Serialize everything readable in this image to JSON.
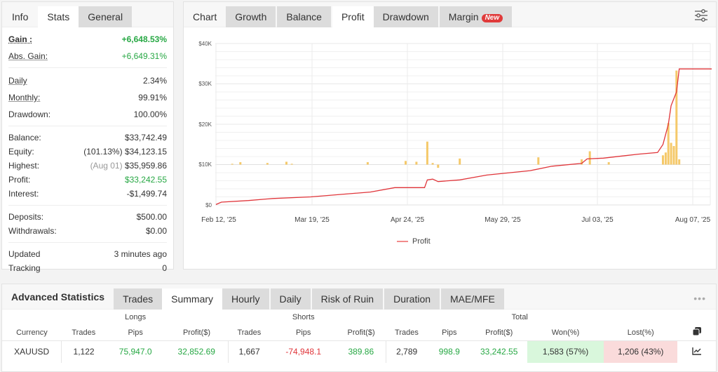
{
  "stats_panel": {
    "tabs": [
      {
        "label": "Info",
        "active": false
      },
      {
        "label": "Stats",
        "active": true
      },
      {
        "label": "General",
        "active": false
      }
    ],
    "gain_label": "Gain :",
    "gain_value": "+6,648.53%",
    "abs_gain_label": "Abs. Gain:",
    "abs_gain_value": "+6,649.31%",
    "daily_label": "Daily",
    "daily_value": "2.34%",
    "monthly_label": "Monthly:",
    "monthly_value": "99.91%",
    "drawdown_label": "Drawdown:",
    "drawdown_value": "100.00%",
    "balance_label": "Balance:",
    "balance_value": "$33,742.49",
    "equity_label": "Equity:",
    "equity_pct": "(101.13%)",
    "equity_value": "$34,123.15",
    "highest_label": "Highest:",
    "highest_date": "(Aug 01)",
    "highest_value": "$35,959.86",
    "profit_label": "Profit:",
    "profit_value": "$33,242.55",
    "interest_label": "Interest:",
    "interest_value": "-$1,499.74",
    "deposits_label": "Deposits:",
    "deposits_value": "$500.00",
    "withdrawals_label": "Withdrawals:",
    "withdrawals_value": "$0.00",
    "updated_label": "Updated",
    "updated_value": "3 minutes ago",
    "tracking_label": "Tracking",
    "tracking_value": "0"
  },
  "chart_panel": {
    "tabs": [
      {
        "label": "Chart",
        "active": false
      },
      {
        "label": "Growth",
        "active": false
      },
      {
        "label": "Balance",
        "active": false
      },
      {
        "label": "Profit",
        "active": true
      },
      {
        "label": "Drawdown",
        "active": false
      },
      {
        "label": "Margin",
        "active": false,
        "badge": "New"
      }
    ],
    "settings_icon": "sliders-icon",
    "legend_label": "Profit"
  },
  "chart_data": {
    "type": "line",
    "title": "Profit",
    "xlabel": "",
    "ylabel": "",
    "ylim": [
      0,
      40000
    ],
    "y_ticks": [
      "$0",
      "$10K",
      "$20K",
      "$30K",
      "$40K"
    ],
    "x_ticks": [
      "Feb 12, '25",
      "Mar 19, '25",
      "Apr 24, '25",
      "May 29, '25",
      "Jul 03, '25",
      "Aug 07, '25"
    ],
    "grid": true,
    "legend": [
      "Profit"
    ],
    "legend_position": "bottom",
    "colors": {
      "line": "#e0353a",
      "bars": "#f5c96a"
    },
    "series": [
      {
        "name": "Profit",
        "type": "line",
        "x": [
          "Feb 12",
          "Feb 14",
          "Feb 24",
          "Mar 05",
          "Mar 19",
          "Apr 10",
          "Apr 19",
          "Apr 30",
          "May 01",
          "May 03",
          "May 05",
          "May 13",
          "May 23",
          "Jun 08",
          "Jun 16",
          "Jun 27",
          "Jun 29",
          "Jul 05",
          "Jul 18",
          "Jul 25",
          "Jul 27",
          "Jul 29",
          "Jul 30",
          "Aug 01",
          "Aug 02",
          "Aug 14"
        ],
        "values": [
          100,
          700,
          1100,
          1600,
          2000,
          3200,
          4300,
          4300,
          6200,
          6400,
          5800,
          6200,
          7400,
          8500,
          9600,
          10300,
          11400,
          11600,
          12600,
          13000,
          15000,
          20000,
          24600,
          28000,
          33700,
          33700
        ]
      },
      {
        "name": "Daily profit (bars, baseline $10K)",
        "type": "bar",
        "note": "bars drawn relative to $10K baseline; approximate",
        "x": [
          "Feb 18",
          "Feb 21",
          "Mar 03",
          "Mar 10",
          "Mar 12",
          "Apr 09",
          "Apr 23",
          "Apr 27",
          "May 01",
          "May 03",
          "May 05",
          "May 13",
          "Jun 11",
          "Jun 27",
          "Jun 30",
          "Jul 07",
          "Jul 27",
          "Jul 28",
          "Jul 29",
          "Jul 30",
          "Jul 31",
          "Aug 01",
          "Aug 02"
        ],
        "values": [
          200,
          600,
          400,
          700,
          200,
          600,
          900,
          700,
          5700,
          400,
          -800,
          1500,
          1800,
          1300,
          3300,
          600,
          2300,
          3000,
          10300,
          5400,
          4600,
          23300,
          1300
        ]
      }
    ]
  },
  "advanced_stats": {
    "title": "Advanced Statistics",
    "tabs": [
      {
        "label": "Trades",
        "active": false
      },
      {
        "label": "Summary",
        "active": true
      },
      {
        "label": "Hourly",
        "active": false
      },
      {
        "label": "Daily",
        "active": false
      },
      {
        "label": "Risk of Ruin",
        "active": false
      },
      {
        "label": "Duration",
        "active": false
      },
      {
        "label": "MAE/MFE",
        "active": false
      }
    ],
    "more_icon": "ellipsis-icon",
    "group_headers": {
      "longs": "Longs",
      "shorts": "Shorts",
      "total": "Total"
    },
    "columns": [
      "Currency",
      "Trades",
      "Pips",
      "Profit($)",
      "Trades",
      "Pips",
      "Profit($)",
      "Trades",
      "Pips",
      "Profit($)",
      "Won(%)",
      "Lost(%)"
    ],
    "rows": [
      {
        "currency": "XAUUSD",
        "long_trades": "1,122",
        "long_pips": "75,947.0",
        "long_profit": "32,852.69",
        "short_trades": "1,667",
        "short_pips": "-74,948.1",
        "short_profit": "389.86",
        "total_trades": "2,789",
        "total_pips": "998.9",
        "total_profit": "33,242.55",
        "won": "1,583 (57%)",
        "lost": "1,206 (43%)"
      }
    ]
  }
}
